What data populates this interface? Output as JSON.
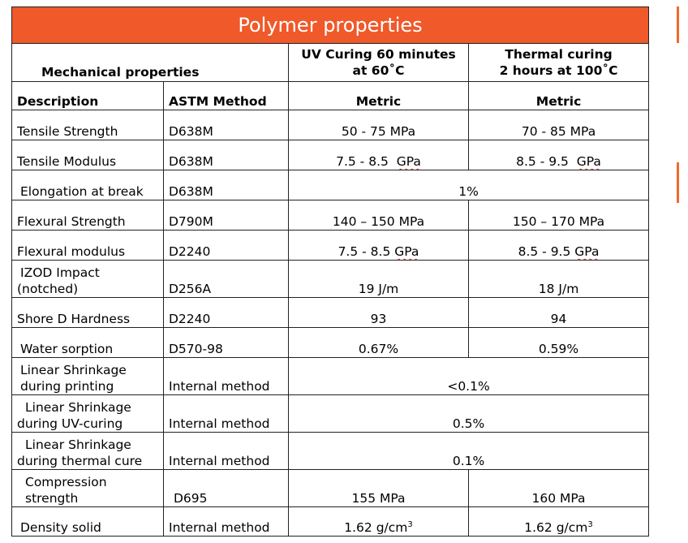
{
  "title": "Polymer properties",
  "header": {
    "section": "Mechanical properties",
    "uv_line1": "UV Curing 60 minutes",
    "uv_line2": "at 60˚C",
    "thermal_line1": "Thermal curing",
    "thermal_line2": "2 hours at 100˚C"
  },
  "subheader": {
    "description": "Description",
    "astm": "ASTM Method",
    "metric_uv": "Metric",
    "metric_thermal": "Metric"
  },
  "rows": [
    {
      "desc": "Tensile Strength",
      "method": "D638M",
      "uv": "50 - 75 MPa",
      "thermal": "70 - 85 MPa"
    },
    {
      "desc": "Tensile Modulus",
      "method": "D638M",
      "uv_value": "7.5 - 8.5",
      "uv_unit": "GPa",
      "thermal_value": "8.5 - 9.5",
      "thermal_unit": "GPa"
    },
    {
      "desc": "Elongation at break",
      "method": "D638M",
      "merged": "1%"
    },
    {
      "desc": "Flexural Strength",
      "method": "D790M",
      "uv": "140 – 150 MPa",
      "thermal": "150 – 170 MPa"
    },
    {
      "desc": "Flexural modulus",
      "method": "D2240",
      "uv_value": "7.5 - 8.5",
      "uv_unit": "GPa",
      "thermal_value": "8.5 - 9.5",
      "thermal_unit": "GPa"
    },
    {
      "desc_line1": "IZOD Impact",
      "desc_line2": "(notched)",
      "method": "D256A",
      "uv": "19 J/m",
      "thermal": "18 J/m"
    },
    {
      "desc": "Shore D Hardness",
      "method": "D2240",
      "uv": "93",
      "thermal": "94"
    },
    {
      "desc": "Water sorption",
      "method": "D570-98",
      "uv": "0.67%",
      "thermal": "0.59%"
    },
    {
      "desc_line1": "Linear Shrinkage",
      "desc_line2": "during printing",
      "method": "Internal method",
      "merged": "<0.1%"
    },
    {
      "desc_line1": "Linear Shrinkage",
      "desc_line2": "during UV-curing",
      "method": "Internal method",
      "merged": "0.5%"
    },
    {
      "desc_line1": "Linear Shrinkage",
      "desc_line2": "during thermal cure",
      "method": "Internal method",
      "merged": "0.1%"
    },
    {
      "desc_line1": "Compression",
      "desc_line2": "strength",
      "method": "D695",
      "uv": "155 MPa",
      "thermal": "160 MPa"
    },
    {
      "desc": "Density solid",
      "method": "Internal method",
      "uv_value": "1.62 g/cm",
      "uv_sup": "3",
      "thermal_value": "1.62 g/cm",
      "thermal_sup": "3"
    }
  ],
  "colors": {
    "title_bg": "#f0592a",
    "title_text": "#ffffff",
    "border": "#222222",
    "edge_accent": "#f06a2c"
  }
}
